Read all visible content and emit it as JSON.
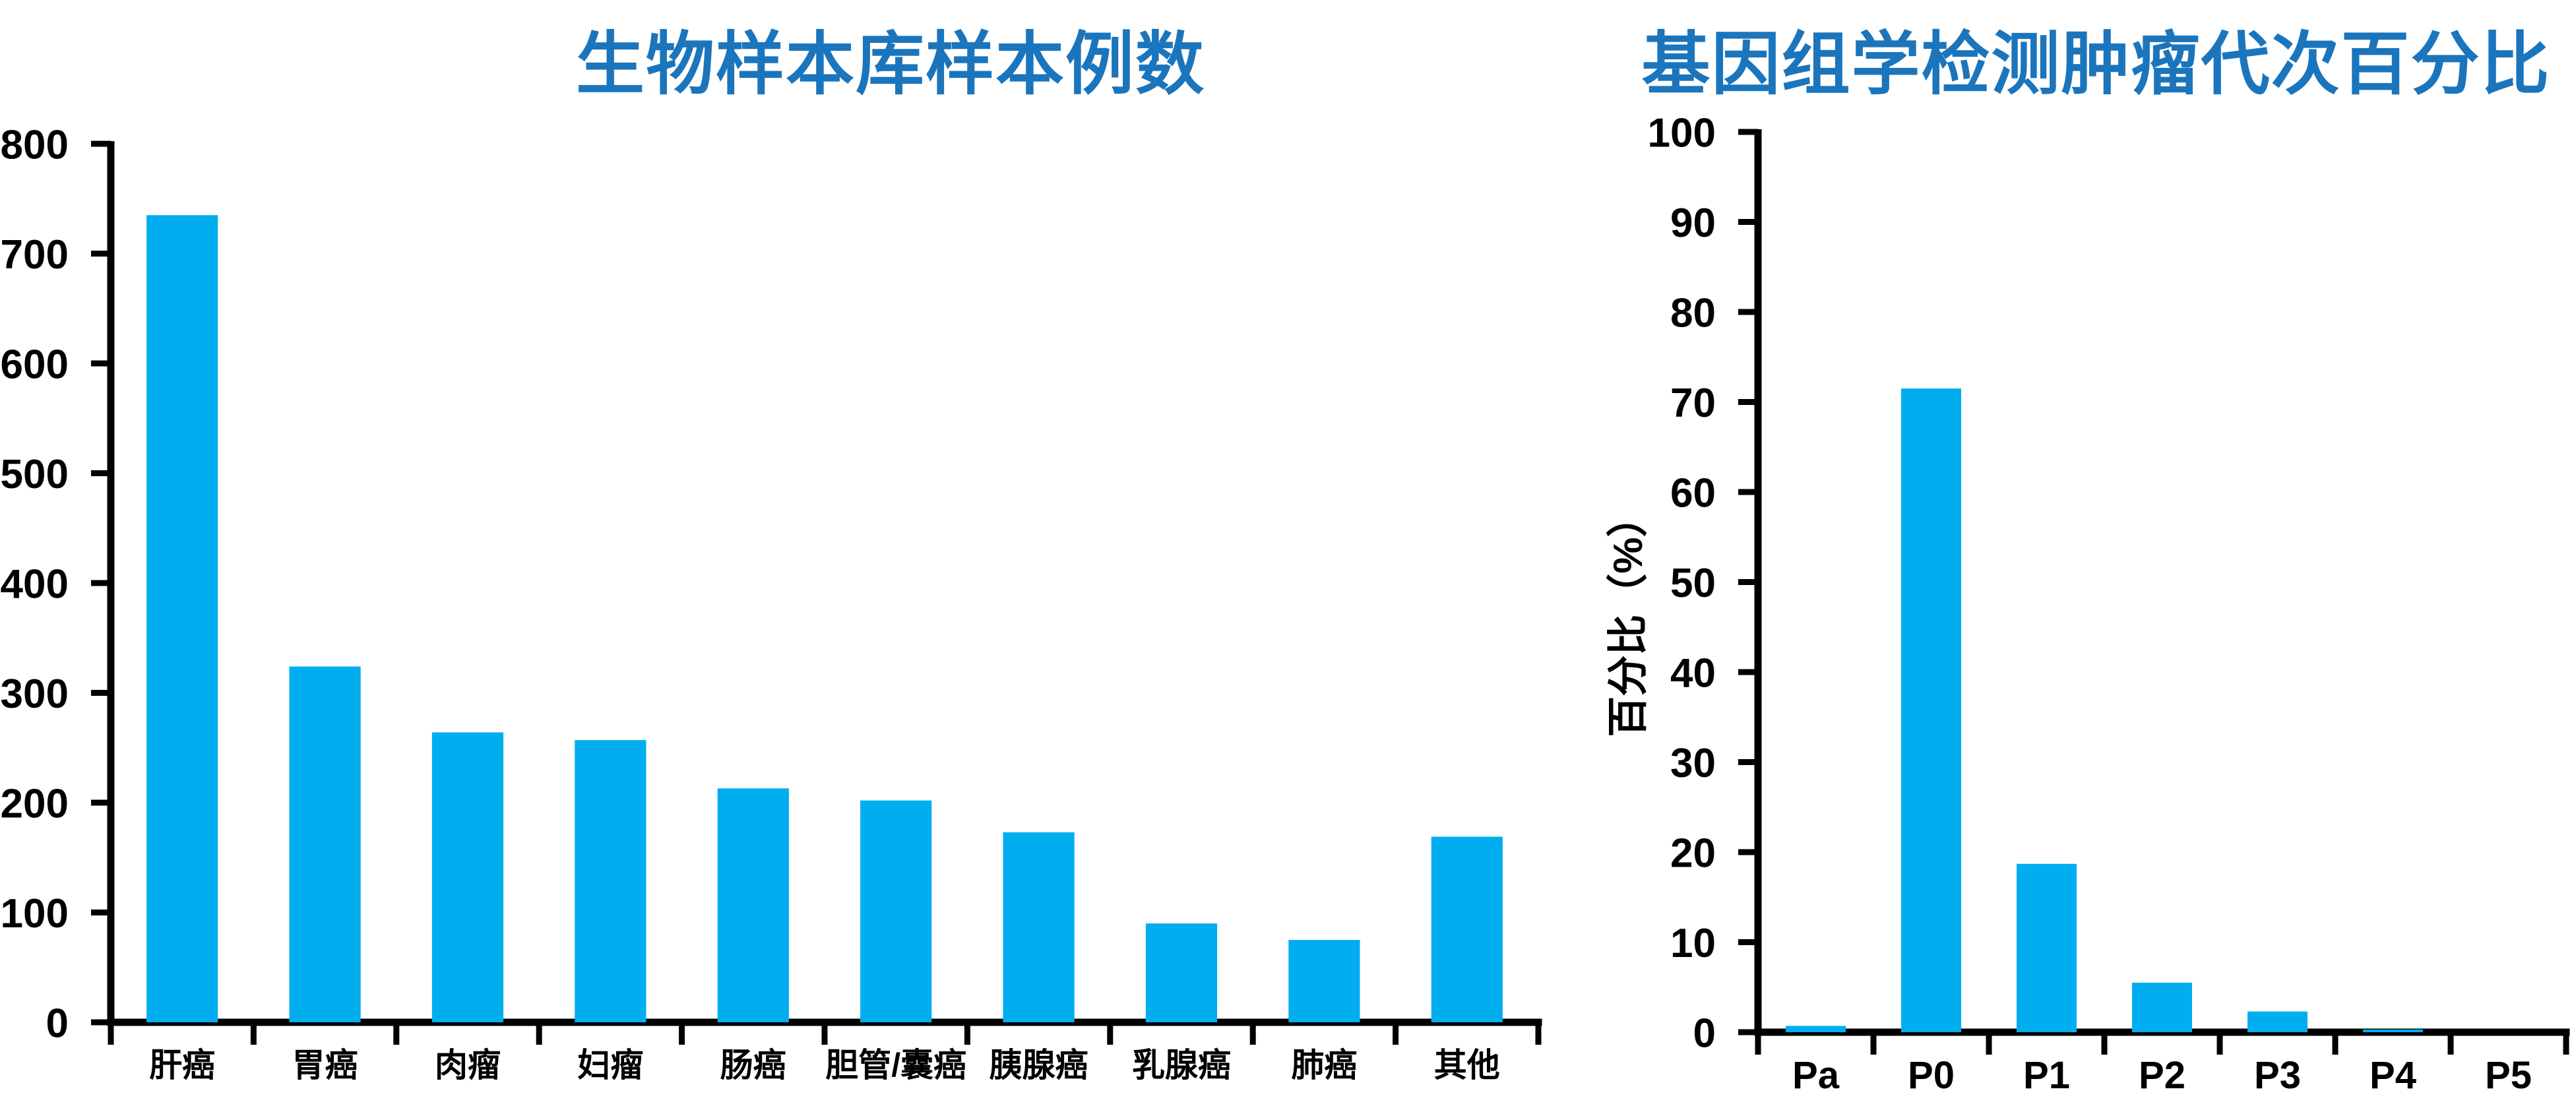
{
  "page": {
    "background": "#ffffff"
  },
  "chart_data": [
    {
      "type": "bar",
      "title": "生物样本库样本例数",
      "title_color": "#1B75BC",
      "bar_color": "#00AEEF",
      "axis_color": "#000000",
      "categories": [
        "肝癌",
        "胃癌",
        "肉瘤",
        "妇瘤",
        "肠癌",
        "胆管/囊癌",
        "胰腺癌",
        "乳腺癌",
        "肺癌",
        "其他"
      ],
      "values": [
        735,
        324,
        264,
        257,
        213,
        202,
        173,
        90,
        75,
        169
      ],
      "xlabel": "",
      "ylabel": "",
      "ylim": [
        0,
        800
      ],
      "ytick_step": 100,
      "ytick_labels": [
        "0",
        "100",
        "200",
        "300",
        "400",
        "500",
        "600",
        "700",
        "800"
      ],
      "grid": false,
      "legend": null
    },
    {
      "type": "bar",
      "title": "基因组学检测肿瘤代次百分比",
      "title_color": "#1B75BC",
      "bar_color": "#00AEEF",
      "axis_color": "#000000",
      "categories": [
        "Pa",
        "P0",
        "P1",
        "P2",
        "P3",
        "P4",
        "P5"
      ],
      "values": [
        0.7,
        71.5,
        18.7,
        5.5,
        2.3,
        0.3,
        0
      ],
      "xlabel": "",
      "ylabel": "百分比（%）",
      "ylim": [
        0,
        100
      ],
      "ytick_step": 10,
      "ytick_labels": [
        "0",
        "10",
        "20",
        "30",
        "40",
        "50",
        "60",
        "70",
        "80",
        "90",
        "100"
      ],
      "grid": false,
      "legend": null
    }
  ]
}
